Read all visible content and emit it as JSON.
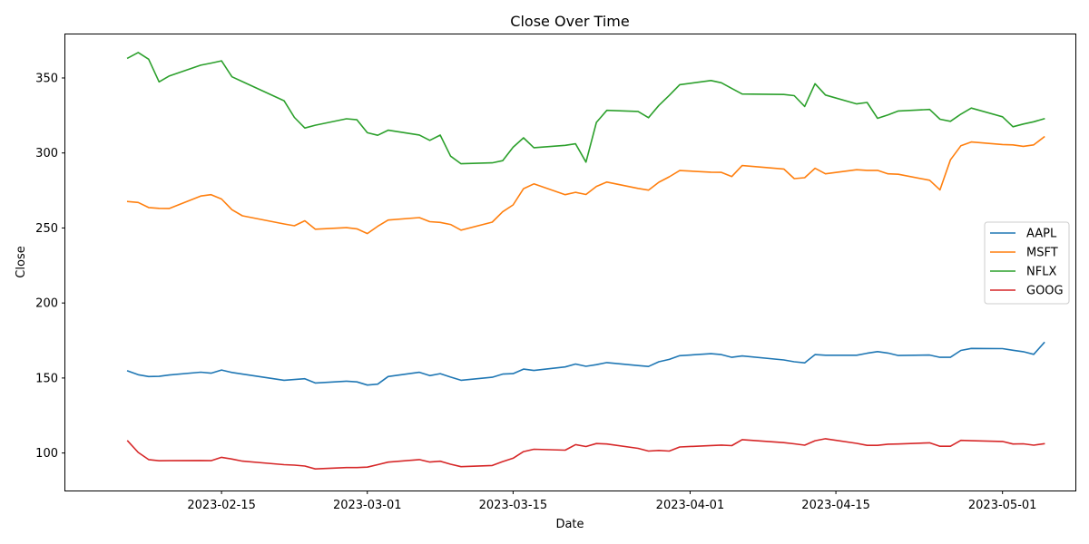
{
  "chart_data": {
    "type": "line",
    "title": "Close Over Time",
    "xlabel": "Date",
    "ylabel": "Close",
    "x_ticks": [
      "2023-02-15",
      "2023-03-01",
      "2023-03-15",
      "2023-04-01",
      "2023-04-15",
      "2023-05-01"
    ],
    "y_ticks": [
      100,
      150,
      200,
      250,
      300,
      350
    ],
    "xlim": [
      "2023-01-31",
      "2023-05-08"
    ],
    "ylim": [
      75,
      379
    ],
    "grid": false,
    "legend_position": "center-right",
    "x": [
      "2023-02-06",
      "2023-02-07",
      "2023-02-08",
      "2023-02-09",
      "2023-02-10",
      "2023-02-13",
      "2023-02-14",
      "2023-02-15",
      "2023-02-16",
      "2023-02-17",
      "2023-02-21",
      "2023-02-22",
      "2023-02-23",
      "2023-02-24",
      "2023-02-27",
      "2023-02-28",
      "2023-03-01",
      "2023-03-02",
      "2023-03-03",
      "2023-03-06",
      "2023-03-07",
      "2023-03-08",
      "2023-03-09",
      "2023-03-10",
      "2023-03-13",
      "2023-03-14",
      "2023-03-15",
      "2023-03-16",
      "2023-03-17",
      "2023-03-20",
      "2023-03-21",
      "2023-03-22",
      "2023-03-23",
      "2023-03-24",
      "2023-03-27",
      "2023-03-28",
      "2023-03-29",
      "2023-03-30",
      "2023-03-31",
      "2023-04-03",
      "2023-04-04",
      "2023-04-05",
      "2023-04-06",
      "2023-04-10",
      "2023-04-11",
      "2023-04-12",
      "2023-04-13",
      "2023-04-14",
      "2023-04-17",
      "2023-04-18",
      "2023-04-19",
      "2023-04-20",
      "2023-04-21",
      "2023-04-24",
      "2023-04-25",
      "2023-04-26",
      "2023-04-27",
      "2023-04-28",
      "2023-05-01",
      "2023-05-02",
      "2023-05-03",
      "2023-05-04",
      "2023-05-05"
    ],
    "series": [
      {
        "name": "AAPL",
        "color": "#1f77b4",
        "values": [
          154.7,
          152.2,
          151.0,
          151.1,
          152.0,
          153.9,
          153.2,
          155.3,
          153.7,
          152.6,
          148.5,
          149.0,
          149.5,
          146.7,
          147.9,
          147.4,
          145.3,
          145.9,
          151.0,
          153.8,
          151.6,
          152.9,
          150.6,
          148.5,
          150.5,
          152.6,
          152.9,
          155.9,
          155.0,
          157.4,
          159.3,
          157.8,
          158.9,
          160.3,
          158.3,
          157.7,
          160.8,
          162.4,
          164.9,
          166.2,
          165.6,
          163.8,
          164.7,
          162.0,
          160.8,
          160.1,
          165.6,
          165.2,
          165.2,
          166.5,
          167.6,
          166.6,
          165.0,
          165.3,
          163.8,
          163.8,
          168.4,
          169.7,
          169.6,
          168.5,
          167.5,
          165.8,
          173.6
        ]
      },
      {
        "name": "MSFT",
        "color": "#ff7f0e",
        "values": [
          267.6,
          267.0,
          263.6,
          263.1,
          263.0,
          271.3,
          272.2,
          269.3,
          262.2,
          258.1,
          252.7,
          251.5,
          254.8,
          249.2,
          250.2,
          249.4,
          246.3,
          251.1,
          255.3,
          256.9,
          254.2,
          253.7,
          252.3,
          248.6,
          253.9,
          260.8,
          265.4,
          276.2,
          279.4,
          272.2,
          273.8,
          272.3,
          277.7,
          280.6,
          276.4,
          275.2,
          280.5,
          284.1,
          288.3,
          287.2,
          287.1,
          284.3,
          291.6,
          289.3,
          282.9,
          283.5,
          289.8,
          286.1,
          288.8,
          288.4,
          288.4,
          286.1,
          285.8,
          281.8,
          275.4,
          295.4,
          304.8,
          307.3,
          305.6,
          305.4,
          304.4,
          305.4,
          310.7
        ]
      },
      {
        "name": "NFLX",
        "color": "#2ca02c",
        "values": [
          363.2,
          367.0,
          362.5,
          347.4,
          351.4,
          358.5,
          359.9,
          361.4,
          350.8,
          347.6,
          334.8,
          323.7,
          316.6,
          318.5,
          322.8,
          322.1,
          313.5,
          311.8,
          315.2,
          312.0,
          308.4,
          311.9,
          297.9,
          292.8,
          293.4,
          294.9,
          303.8,
          310.1,
          303.5,
          305.1,
          306.1,
          293.9,
          320.4,
          328.4,
          327.7,
          323.5,
          331.7,
          338.4,
          345.5,
          348.3,
          346.8,
          343.0,
          339.3,
          339.0,
          338.2,
          331.0,
          346.2,
          338.6,
          332.7,
          333.7,
          323.1,
          325.4,
          328.0,
          329.0,
          322.5,
          321.1,
          325.9,
          329.9,
          324.1,
          317.5,
          319.3,
          320.8,
          322.8
        ]
      },
      {
        "name": "GOOG",
        "color": "#d62728",
        "values": [
          108.0,
          100.4,
          95.6,
          94.8,
          94.9,
          95.0,
          94.9,
          97.1,
          96.0,
          94.6,
          92.2,
          91.9,
          91.3,
          89.4,
          90.3,
          90.3,
          90.6,
          92.2,
          93.9,
          95.6,
          94.0,
          94.5,
          92.5,
          90.9,
          91.7,
          94.3,
          96.5,
          100.9,
          102.5,
          101.9,
          105.6,
          104.3,
          106.3,
          106.0,
          103.1,
          101.3,
          101.7,
          101.3,
          104.0,
          105.0,
          105.3,
          104.9,
          108.9,
          106.9,
          106.1,
          105.2,
          108.2,
          109.5,
          106.4,
          105.1,
          105.1,
          105.9,
          106.0,
          106.8,
          104.5,
          104.5,
          108.4,
          108.2,
          107.7,
          106.0,
          106.1,
          105.2,
          106.2
        ]
      }
    ]
  }
}
